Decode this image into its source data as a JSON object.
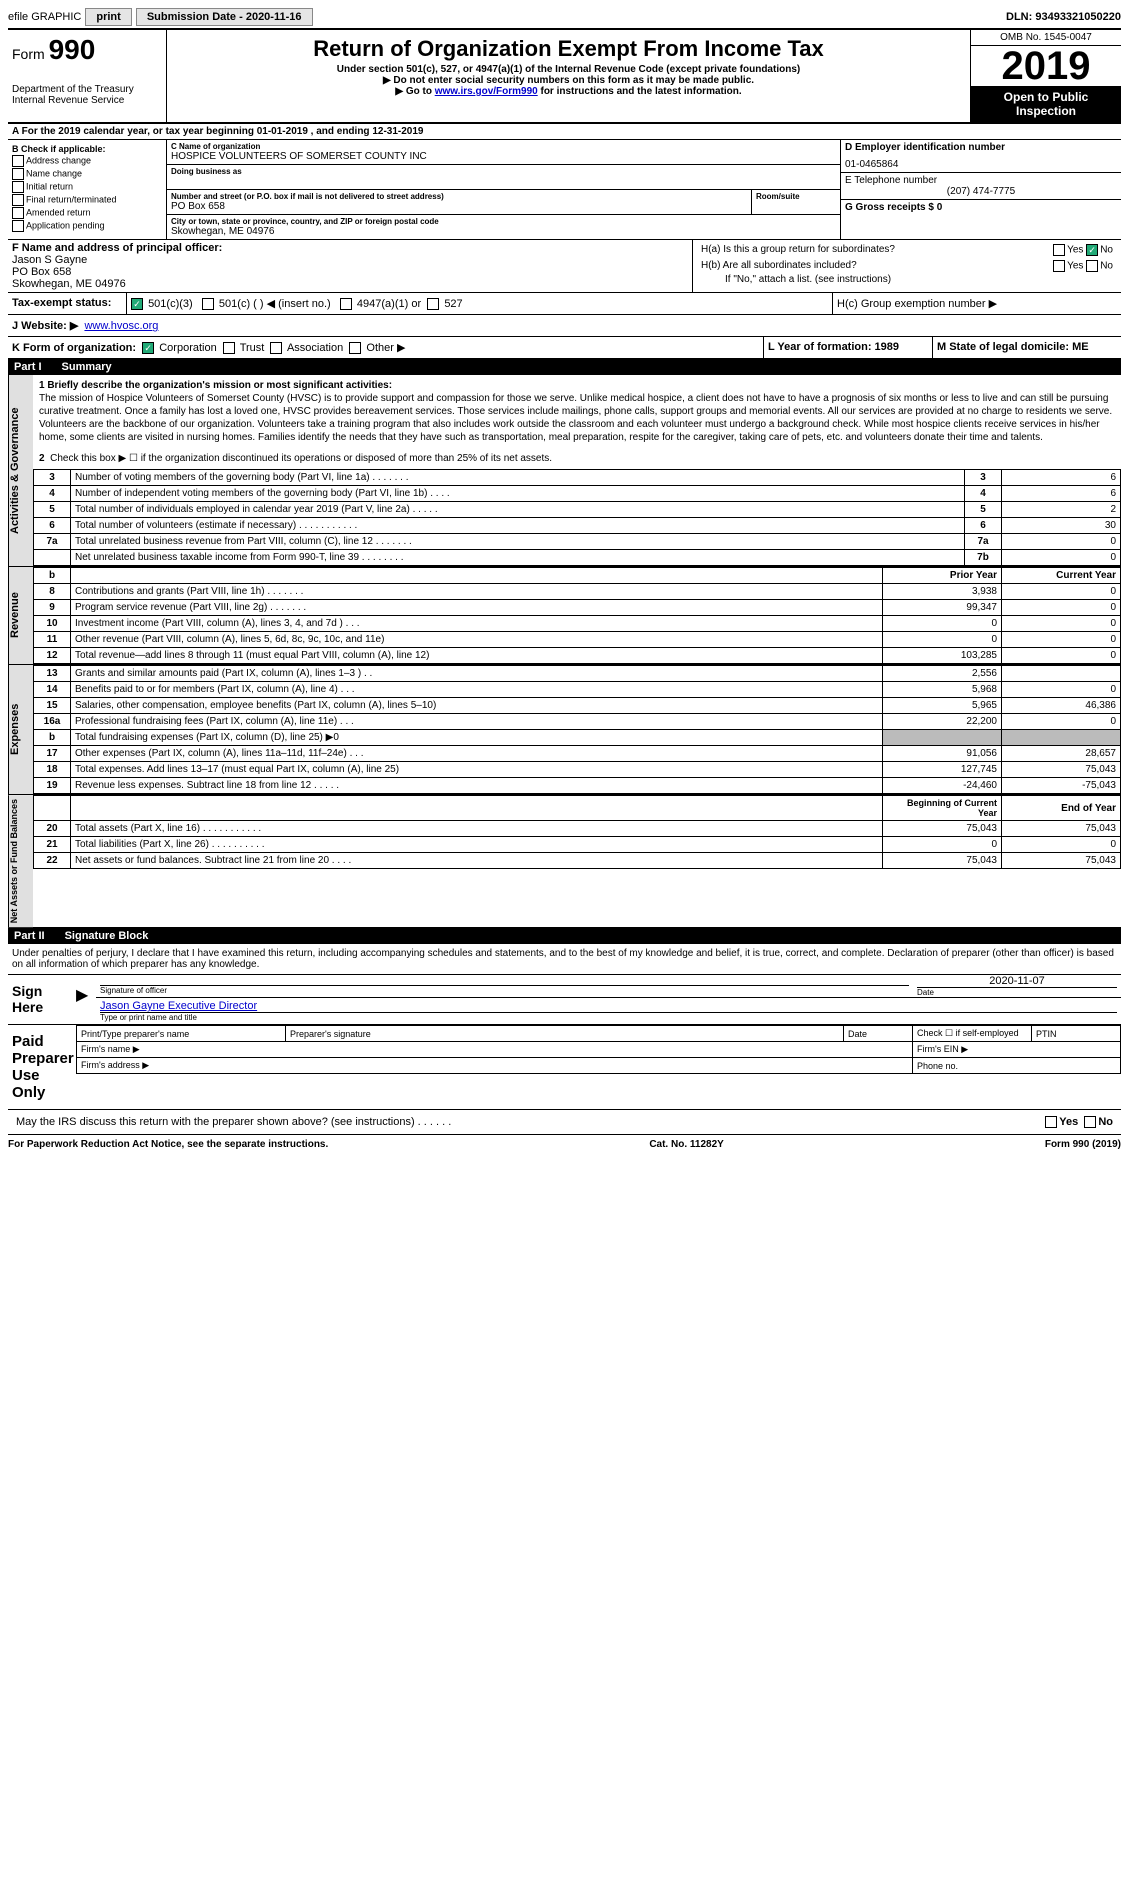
{
  "topbar": {
    "efile": "efile GRAPHIC",
    "print": "print",
    "submission_label": "Submission Date - 2020-11-16",
    "dln": "DLN: 93493321050220"
  },
  "header": {
    "form_prefix": "Form",
    "form_number": "990",
    "dept": "Department of the Treasury\nInternal Revenue Service",
    "title": "Return of Organization Exempt From Income Tax",
    "subtitle": "Under section 501(c), 527, or 4947(a)(1) of the Internal Revenue Code (except private foundations)",
    "note1": "▶ Do not enter social security numbers on this form as it may be made public.",
    "note2_pre": "▶ Go to ",
    "note2_link": "www.irs.gov/Form990",
    "note2_post": " for instructions and the latest information.",
    "omb": "OMB No. 1545-0047",
    "year": "2019",
    "inspection": "Open to Public Inspection"
  },
  "period": "A For the 2019 calendar year, or tax year beginning 01-01-2019   , and ending 12-31-2019",
  "boxB": {
    "label": "B Check if applicable:",
    "opts": [
      "Address change",
      "Name change",
      "Initial return",
      "Final return/terminated",
      "Amended return",
      "Application pending"
    ]
  },
  "boxC": {
    "name_label": "C Name of organization",
    "name": "HOSPICE VOLUNTEERS OF SOMERSET COUNTY INC",
    "dba_label": "Doing business as",
    "addr_label": "Number and street (or P.O. box if mail is not delivered to street address)",
    "addr": "PO Box 658",
    "room_label": "Room/suite",
    "city_label": "City or town, state or province, country, and ZIP or foreign postal code",
    "city": "Skowhegan, ME  04976"
  },
  "boxD": {
    "label": "D Employer identification number",
    "value": "01-0465864"
  },
  "boxE": {
    "label": "E Telephone number",
    "value": "(207) 474-7775"
  },
  "boxG": {
    "label": "G Gross receipts $ 0"
  },
  "boxF": {
    "label": "F  Name and address of principal officer:",
    "name": "Jason S Gayne",
    "addr1": "PO Box 658",
    "addr2": "Skowhegan, ME  04976"
  },
  "boxH": {
    "ha": "H(a)  Is this a group return for subordinates?",
    "hb": "H(b)  Are all subordinates included?",
    "hnote": "If \"No,\" attach a list. (see instructions)",
    "hc": "H(c)  Group exemption number ▶",
    "yes": "Yes",
    "no": "No"
  },
  "boxI": {
    "label": "Tax-exempt status:",
    "a": "501(c)(3)",
    "b": "501(c) (  ) ◀ (insert no.)",
    "c": "4947(a)(1) or",
    "d": "527"
  },
  "boxJ": {
    "label": "J  Website: ▶",
    "value": "www.hvosc.org"
  },
  "boxK": {
    "label": "K Form of organization:",
    "opts": [
      "Corporation",
      "Trust",
      "Association",
      "Other ▶"
    ]
  },
  "boxL": {
    "label": "L Year of formation: 1989"
  },
  "boxM": {
    "label": "M State of legal domicile: ME"
  },
  "part1": {
    "pt": "Part I",
    "title": "Summary"
  },
  "mission": {
    "q": "1  Briefly describe the organization's mission or most significant activities:",
    "text": "The mission of Hospice Volunteers of Somerset County (HVSC) is to provide support and compassion for those we serve. Unlike medical hospice, a client does not have to have a prognosis of six months or less to live and can still be pursuing curative treatment. Once a family has lost a loved one, HVSC provides bereavement services. Those services include mailings, phone calls, support groups and memorial events. All our services are provided at no charge to residents we serve. Volunteers are the backbone of our organization. Volunteers take a training program that also includes work outside the classroom and each volunteer must undergo a background check. While most hospice clients receive services in his/her home, some clients are visited in nursing homes. Families identify the needs that they have such as transportation, meal preparation, respite for the caregiver, taking care of pets, etc. and volunteers donate their time and talents."
  },
  "gov": {
    "tab": "Activities & Governance",
    "l2": "Check this box ▶ ☐ if the organization discontinued its operations or disposed of more than 25% of its net assets.",
    "rows": [
      {
        "n": "3",
        "t": "Number of voting members of the governing body (Part VI, line 1a)  .    .    .    .    .    .    .",
        "bn": "3",
        "v": "6"
      },
      {
        "n": "4",
        "t": "Number of independent voting members of the governing body (Part VI, line 1b)   .    .    .    .",
        "bn": "4",
        "v": "6"
      },
      {
        "n": "5",
        "t": "Total number of individuals employed in calendar year 2019 (Part V, line 2a)   .    .    .    .    .",
        "bn": "5",
        "v": "2"
      },
      {
        "n": "6",
        "t": "Total number of volunteers (estimate if necessary)   .    .    .    .    .    .    .    .    .    .    .",
        "bn": "6",
        "v": "30"
      },
      {
        "n": "7a",
        "t": "Total unrelated business revenue from Part VIII, column (C), line 12   .    .    .    .    .    .    .",
        "bn": "7a",
        "v": "0"
      },
      {
        "n": "",
        "t": "Net unrelated business taxable income from Form 990-T, line 39   .    .    .    .    .    .    .    .",
        "bn": "7b",
        "v": "0"
      }
    ]
  },
  "rev": {
    "tab": "Revenue",
    "h_prior": "Prior Year",
    "h_curr": "Current Year",
    "rows": [
      {
        "n": "8",
        "t": "Contributions and grants (Part VIII, line 1h)   .    .    .    .    .    .    .",
        "p": "3,938",
        "c": "0"
      },
      {
        "n": "9",
        "t": "Program service revenue (Part VIII, line 2g)   .    .    .    .    .    .    .",
        "p": "99,347",
        "c": "0"
      },
      {
        "n": "10",
        "t": "Investment income (Part VIII, column (A), lines 3, 4, and 7d )   .    .    .",
        "p": "0",
        "c": "0"
      },
      {
        "n": "11",
        "t": "Other revenue (Part VIII, column (A), lines 5, 6d, 8c, 9c, 10c, and 11e)",
        "p": "0",
        "c": "0"
      },
      {
        "n": "12",
        "t": "Total revenue—add lines 8 through 11 (must equal Part VIII, column (A), line 12)",
        "p": "103,285",
        "c": "0"
      }
    ]
  },
  "exp": {
    "tab": "Expenses",
    "rows": [
      {
        "n": "13",
        "t": "Grants and similar amounts paid (Part IX, column (A), lines 1–3 )   .    .",
        "p": "2,556",
        "c": ""
      },
      {
        "n": "14",
        "t": "Benefits paid to or for members (Part IX, column (A), line 4)   .    .    .",
        "p": "5,968",
        "c": "0"
      },
      {
        "n": "15",
        "t": "Salaries, other compensation, employee benefits (Part IX, column (A), lines 5–10)",
        "p": "5,965",
        "c": "46,386"
      },
      {
        "n": "16a",
        "t": "Professional fundraising fees (Part IX, column (A), line 11e)   .    .    .",
        "p": "22,200",
        "c": "0"
      },
      {
        "n": "b",
        "t": "Total fundraising expenses (Part IX, column (D), line 25) ▶0",
        "p": "",
        "c": "",
        "grey": true
      },
      {
        "n": "17",
        "t": "Other expenses (Part IX, column (A), lines 11a–11d, 11f–24e)   .    .    .",
        "p": "91,056",
        "c": "28,657"
      },
      {
        "n": "18",
        "t": "Total expenses. Add lines 13–17 (must equal Part IX, column (A), line 25)",
        "p": "127,745",
        "c": "75,043"
      },
      {
        "n": "19",
        "t": "Revenue less expenses. Subtract line 18 from line 12   .    .    .    .    .",
        "p": "-24,460",
        "c": "-75,043"
      }
    ]
  },
  "net": {
    "tab": "Net Assets or Fund Balances",
    "h_prior": "Beginning of Current Year",
    "h_curr": "End of Year",
    "rows": [
      {
        "n": "20",
        "t": "Total assets (Part X, line 16)   .    .    .    .    .    .    .    .    .    .    .",
        "p": "75,043",
        "c": "75,043"
      },
      {
        "n": "21",
        "t": "Total liabilities (Part X, line 26)   .    .    .    .    .    .    .    .    .    .",
        "p": "0",
        "c": "0"
      },
      {
        "n": "22",
        "t": "Net assets or fund balances. Subtract line 21 from line 20   .    .    .    .",
        "p": "75,043",
        "c": "75,043"
      }
    ]
  },
  "part2": {
    "pt": "Part II",
    "title": "Signature Block"
  },
  "sig": {
    "decl": "Under penalties of perjury, I declare that I have examined this return, including accompanying schedules and statements, and to the best of my knowledge and belief, it is true, correct, and complete. Declaration of preparer (other than officer) is based on all information of which preparer has any knowledge.",
    "sign_here": "Sign Here",
    "sig_officer": "Signature of officer",
    "date_label": "Date",
    "date": "2020-11-07",
    "name_title": "Jason Gayne  Executive Director",
    "type_name": "Type or print name and title",
    "paid": "Paid Preparer Use Only",
    "prep_name": "Print/Type preparer's name",
    "prep_sig": "Preparer's signature",
    "prep_date": "Date",
    "self_emp": "Check ☐ if self-employed",
    "ptin": "PTIN",
    "firm_name": "Firm's name   ▶",
    "firm_ein": "Firm's EIN ▶",
    "firm_addr": "Firm's address ▶",
    "phone": "Phone no.",
    "discuss": "May the IRS discuss this return with the preparer shown above? (see instructions)   .    .    .    .    .    .",
    "yes": "Yes",
    "no": "No"
  },
  "footer": {
    "left": "For Paperwork Reduction Act Notice, see the separate instructions.",
    "mid": "Cat. No. 11282Y",
    "right": "Form 990 (2019)"
  }
}
